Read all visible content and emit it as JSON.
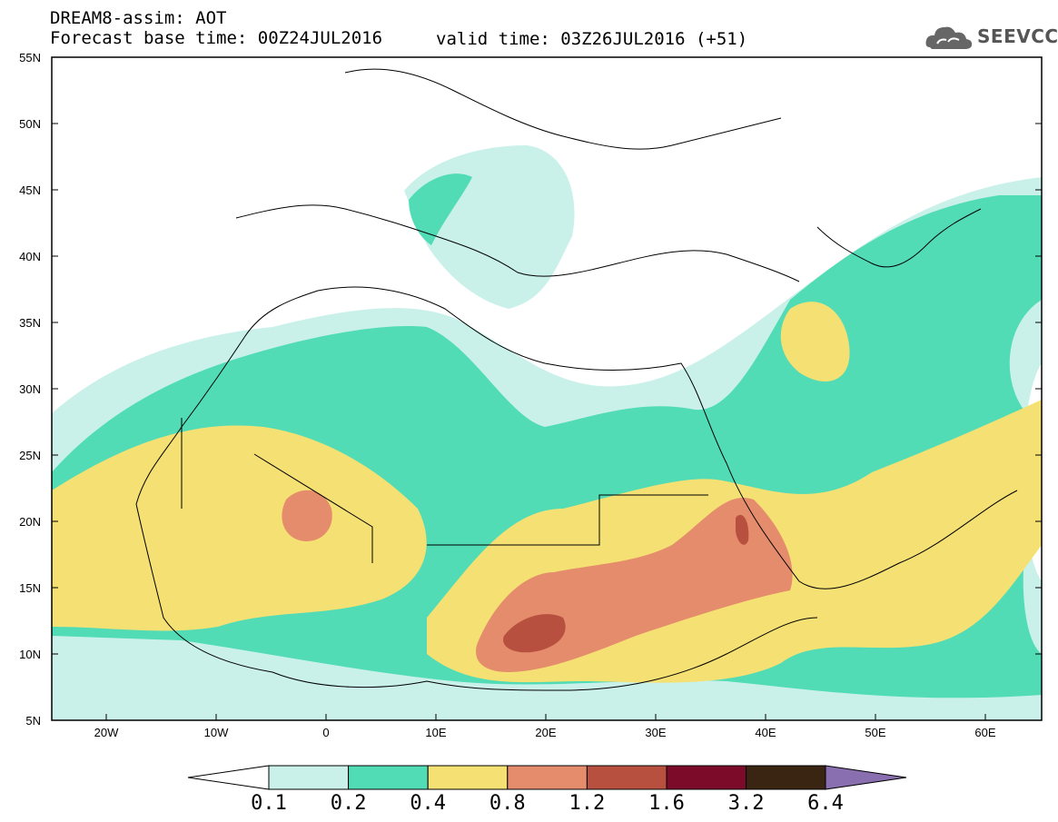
{
  "header": {
    "title": "DREAM8-assim: AOT",
    "base_time": "Forecast base time: 00Z24JUL2016",
    "valid_time": "valid time: 03Z26JUL2016 (+51)"
  },
  "logo": {
    "text": "SEEVCCC",
    "icon": "cloud-icon"
  },
  "axes": {
    "lat_labels": [
      "55N",
      "50N",
      "45N",
      "40N",
      "35N",
      "30N",
      "25N",
      "20N",
      "15N",
      "10N",
      "5N"
    ],
    "lon_labels": [
      "20W",
      "10W",
      "0",
      "10E",
      "20E",
      "30E",
      "40E",
      "50E",
      "60E"
    ]
  },
  "colorbar": {
    "labels": [
      "0.1",
      "0.2",
      "0.4",
      "0.8",
      "1.2",
      "1.6",
      "3.2",
      "6.4"
    ],
    "colors": [
      "#c9f1ea",
      "#52dcb6",
      "#f5e073",
      "#e58c6c",
      "#b7503f",
      "#7b0b28",
      "#3a2513",
      "#8a6fb0"
    ]
  }
}
